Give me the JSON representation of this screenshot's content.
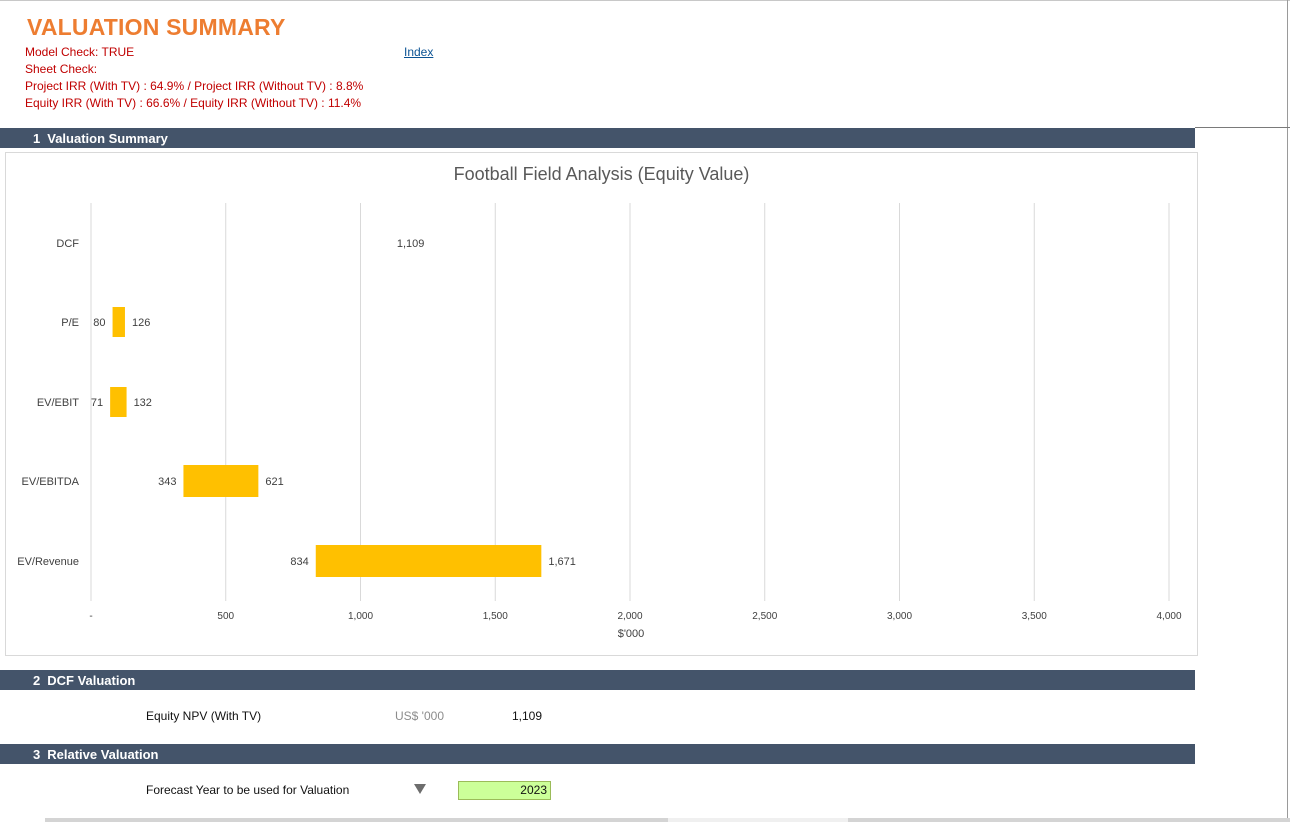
{
  "header": {
    "title": "VALUATION SUMMARY",
    "model_check": "Model Check: TRUE",
    "sheet_check": "Sheet Check:",
    "project_irr": "Project IRR  (With TV) : 64.9%  / Project IRR (Without TV) : 8.8%",
    "equity_irr": "Equity IRR  (With TV) : 66.6%  / Equity IRR (Without TV) : 11.4%",
    "index_link": "Index"
  },
  "sections": {
    "s1": {
      "num": "1",
      "label": "Valuation Summary"
    },
    "s2": {
      "num": "2",
      "label": "DCF Valuation"
    },
    "s3": {
      "num": "3",
      "label": "Relative Valuation"
    }
  },
  "dcf": {
    "label": "Equity NPV (With TV)",
    "unit": "US$ '000",
    "value": "1,109"
  },
  "relative": {
    "label": "Forecast Year to be used for Valuation",
    "year": "2023"
  },
  "colors": {
    "title": "#ed7d31",
    "info_text": "#c00000",
    "section_bar": "#44546a",
    "bar_fill": "#ffc000",
    "input_fill": "#ccff99"
  },
  "chart_data": {
    "type": "bar",
    "orientation": "horizontal-floating",
    "title": "Football Field Analysis (Equity Value)",
    "xlabel": "$'000",
    "xlim": [
      0,
      4000
    ],
    "x_ticks": [
      0,
      500,
      1000,
      1500,
      2000,
      2500,
      3000,
      3500,
      4000
    ],
    "x_tick_labels": [
      "-",
      "500",
      "1,000",
      "1,500",
      "2,000",
      "2,500",
      "3,000",
      "3,500",
      "4,000"
    ],
    "grid": "vertical",
    "categories": [
      "DCF",
      "P/E",
      "EV/EBIT",
      "EV/EBITDA",
      "EV/Revenue"
    ],
    "low": [
      1109,
      80,
      71,
      343,
      834
    ],
    "high": [
      1109,
      126,
      132,
      621,
      1671
    ],
    "low_labels": [
      "",
      "80",
      "71",
      "343",
      "834"
    ],
    "high_labels": [
      "1,109",
      "126",
      "132",
      "621",
      "1,671"
    ]
  }
}
